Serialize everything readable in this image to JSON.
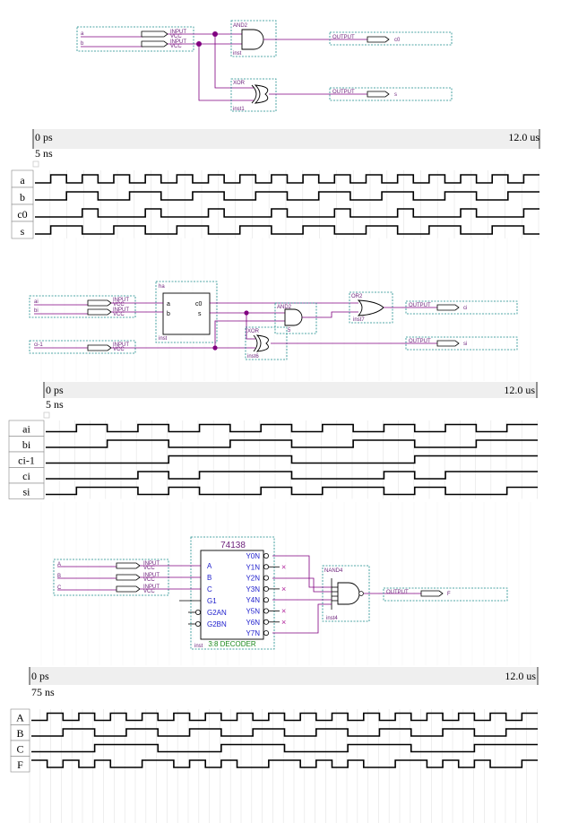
{
  "section1": {
    "inputs": [
      {
        "name": "a",
        "tag": "INPUT",
        "vcc": "VCC"
      },
      {
        "name": "b",
        "tag": "INPUT",
        "vcc": "VCC"
      }
    ],
    "gates": [
      {
        "type": "AND2",
        "inst": "inst"
      },
      {
        "type": "XOR",
        "inst": "inst1"
      }
    ],
    "outputs": [
      {
        "tag": "OUTPUT",
        "name": "c0"
      },
      {
        "tag": "OUTPUT",
        "name": "s"
      }
    ],
    "wave": {
      "start": "0 ps",
      "end": "12.0 us",
      "cursor": "5 ns",
      "signals": [
        {
          "name": "a",
          "period": 1,
          "invert": false
        },
        {
          "name": "b",
          "period": 2,
          "invert": false
        },
        {
          "name": "c0",
          "period": 2,
          "invert": false,
          "type": "and"
        },
        {
          "name": "s",
          "period": 2,
          "invert": false,
          "type": "xor"
        }
      ]
    }
  },
  "section2": {
    "inputs": [
      {
        "name": "ai",
        "tag": "INPUT",
        "vcc": "VCC"
      },
      {
        "name": "bi",
        "tag": "INPUT",
        "vcc": "VCC"
      },
      {
        "name": "ci-1",
        "tag": "INPUT",
        "vcc": "VCC"
      }
    ],
    "block": {
      "name": "ha",
      "pin_a": "a",
      "pin_b": "b",
      "pin_c0": "c0",
      "pin_s": "s",
      "inst": "inst"
    },
    "gates": [
      {
        "type": "AND2",
        "inst": "5"
      },
      {
        "type": "XOR",
        "inst": "inst6"
      },
      {
        "type": "OR2",
        "inst": "inst7"
      }
    ],
    "outputs": [
      {
        "tag": "OUTPUT",
        "name": "ci"
      },
      {
        "tag": "OUTPUT",
        "name": "si"
      }
    ],
    "wave": {
      "start": "0 ps",
      "end": "12.0 us",
      "cursor": "5 ns",
      "signals": [
        "ai",
        "bi",
        "ci-1",
        "ci",
        "si"
      ]
    }
  },
  "section3": {
    "inputs": [
      {
        "name": "A",
        "tag": "INPUT",
        "vcc": "VCC"
      },
      {
        "name": "B",
        "tag": "INPUT",
        "vcc": "VCC"
      },
      {
        "name": "C",
        "tag": "INPUT",
        "vcc": "VCC"
      }
    ],
    "decoder": {
      "title": "74138",
      "left_pins": [
        "A",
        "B",
        "C",
        "G1",
        "G2AN",
        "G2BN"
      ],
      "right_pins": [
        "Y0N",
        "Y1N",
        "Y2N",
        "Y3N",
        "Y4N",
        "Y5N",
        "Y6N",
        "Y7N"
      ],
      "subtitle": "3:8 DECODER",
      "inst": "inst"
    },
    "gate": {
      "type": "NAND4",
      "inst": "inst4"
    },
    "output": {
      "tag": "OUTPUT",
      "name": "F"
    },
    "wave": {
      "start": "0 ps",
      "end": "12.0 us",
      "cursor": "75 ns",
      "signals": [
        "A",
        "B",
        "C",
        "F"
      ]
    }
  },
  "colors": {
    "wire": "#800080",
    "box": "#1a8a8a",
    "bluetext": "#1c1ccc",
    "greentext": "#1d8a1d"
  }
}
